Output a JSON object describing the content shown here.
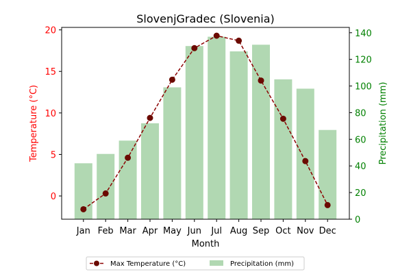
{
  "colors": {
    "temp_line": "#8b0000",
    "temp_marker": "#6b0a00",
    "precip_bar": "#b1d8b2",
    "left_axis": "#ff0000",
    "right_axis": "#008000"
  },
  "chart_data": {
    "type": "bar",
    "title": "SlovenjGradec (Slovenia)",
    "xlabel": "Month",
    "categories": [
      "Jan",
      "Feb",
      "Mar",
      "Apr",
      "May",
      "Jun",
      "Jul",
      "Aug",
      "Sep",
      "Oct",
      "Nov",
      "Dec"
    ],
    "y_left": {
      "label": "Temperature (°C)",
      "ylim": [
        -2.8,
        20.3
      ],
      "ticks": [
        0,
        5,
        10,
        15,
        20
      ]
    },
    "y_right": {
      "label": "Precipitation (mm)",
      "ylim": [
        0,
        144
      ],
      "ticks": [
        0,
        20,
        40,
        60,
        80,
        100,
        120,
        140
      ]
    },
    "series": [
      {
        "name": "Max Temperature (°C)",
        "kind": "line",
        "axis": "left",
        "style": "dashed with circle markers",
        "values": [
          -1.6,
          0.3,
          4.6,
          9.4,
          14.0,
          17.8,
          19.3,
          18.7,
          13.9,
          9.3,
          4.2,
          -1.1
        ]
      },
      {
        "name": "Precipitation (mm)",
        "kind": "bar",
        "axis": "right",
        "values": [
          42,
          49,
          59,
          72,
          99,
          130,
          137,
          126,
          131,
          105,
          98,
          67
        ]
      }
    ],
    "legend": {
      "placement": "bottom-center",
      "columns": 2
    },
    "grid": false
  }
}
